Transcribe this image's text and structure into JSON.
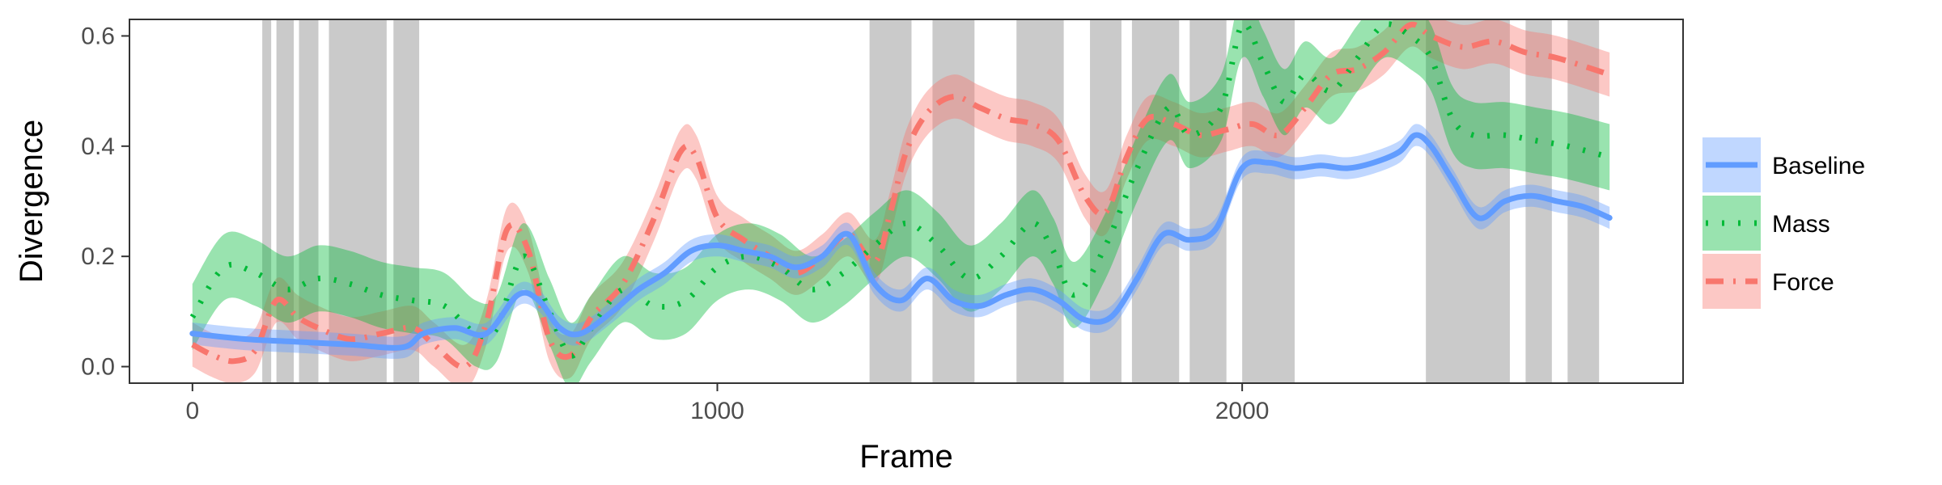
{
  "chart_data": {
    "type": "line",
    "title": "",
    "xlabel": "Frame",
    "ylabel": "Divergence",
    "xlim": [
      -120,
      2840
    ],
    "ylim": [
      -0.03,
      0.63
    ],
    "x_ticks": [
      0,
      1000,
      2000
    ],
    "y_ticks": [
      0.0,
      0.2,
      0.4,
      0.6
    ],
    "x_tick_labels": [
      "0",
      "1000",
      "2000"
    ],
    "y_tick_labels": [
      "0.0",
      "0.2",
      "0.4",
      "0.6"
    ],
    "grid": false,
    "legend_position": "right",
    "shaded_intervals": [
      [
        133,
        150
      ],
      [
        160,
        193
      ],
      [
        203,
        240
      ],
      [
        260,
        370
      ],
      [
        383,
        432
      ],
      [
        1290,
        1370
      ],
      [
        1410,
        1490
      ],
      [
        1570,
        1660
      ],
      [
        1710,
        1770
      ],
      [
        1790,
        1880
      ],
      [
        1900,
        1970
      ],
      [
        2000,
        2100
      ],
      [
        2350,
        2510
      ],
      [
        2540,
        2590
      ],
      [
        2620,
        2680
      ]
    ],
    "series": [
      {
        "name": "Baseline",
        "color": "#619CFF",
        "line_style": "solid",
        "x": [
          0,
          100,
          200,
          300,
          400,
          440,
          500,
          560,
          620,
          660,
          700,
          740,
          800,
          850,
          900,
          950,
          1000,
          1050,
          1100,
          1150,
          1200,
          1250,
          1300,
          1350,
          1400,
          1450,
          1500,
          1550,
          1600,
          1650,
          1700,
          1750,
          1800,
          1850,
          1900,
          1950,
          2000,
          2050,
          2100,
          2150,
          2200,
          2250,
          2300,
          2330,
          2360,
          2400,
          2450,
          2500,
          2550,
          2600,
          2650,
          2700
        ],
        "y": [
          0.06,
          0.05,
          0.045,
          0.04,
          0.035,
          0.06,
          0.07,
          0.06,
          0.13,
          0.12,
          0.07,
          0.06,
          0.1,
          0.14,
          0.17,
          0.21,
          0.22,
          0.21,
          0.2,
          0.18,
          0.2,
          0.24,
          0.15,
          0.12,
          0.16,
          0.12,
          0.11,
          0.13,
          0.14,
          0.12,
          0.085,
          0.09,
          0.16,
          0.24,
          0.23,
          0.25,
          0.36,
          0.37,
          0.36,
          0.365,
          0.36,
          0.37,
          0.39,
          0.42,
          0.4,
          0.34,
          0.27,
          0.3,
          0.31,
          0.3,
          0.29,
          0.27
        ],
        "ci_halfwidth": 0.02
      },
      {
        "name": "Mass",
        "color": "#00BA38",
        "line_style": "dotted",
        "x": [
          0,
          60,
          120,
          180,
          240,
          300,
          360,
          420,
          480,
          540,
          580,
          630,
          680,
          720,
          760,
          820,
          880,
          940,
          1000,
          1060,
          1120,
          1180,
          1240,
          1300,
          1360,
          1420,
          1480,
          1540,
          1600,
          1640,
          1680,
          1740,
          1800,
          1860,
          1900,
          1960,
          2000,
          2040,
          2080,
          2120,
          2170,
          2220,
          2270,
          2320,
          2360,
          2400,
          2440,
          2500,
          2560,
          2620,
          2700
        ],
        "y": [
          0.09,
          0.18,
          0.17,
          0.14,
          0.16,
          0.15,
          0.13,
          0.12,
          0.11,
          0.06,
          0.07,
          0.2,
          0.1,
          0.02,
          0.07,
          0.14,
          0.11,
          0.12,
          0.18,
          0.2,
          0.18,
          0.14,
          0.17,
          0.22,
          0.26,
          0.22,
          0.16,
          0.2,
          0.26,
          0.21,
          0.13,
          0.22,
          0.36,
          0.47,
          0.42,
          0.47,
          0.62,
          0.55,
          0.48,
          0.53,
          0.5,
          0.56,
          0.62,
          0.6,
          0.56,
          0.45,
          0.42,
          0.42,
          0.41,
          0.4,
          0.38
        ],
        "ci_halfwidth": 0.06
      },
      {
        "name": "Force",
        "color": "#F8766D",
        "line_style": "dashed-dotted",
        "x": [
          0,
          40,
          80,
          120,
          160,
          200,
          240,
          300,
          360,
          420,
          460,
          520,
          560,
          600,
          640,
          680,
          720,
          760,
          820,
          880,
          930,
          960,
          1000,
          1050,
          1100,
          1150,
          1200,
          1250,
          1300,
          1330,
          1360,
          1400,
          1450,
          1500,
          1550,
          1600,
          1650,
          1700,
          1740,
          1780,
          1820,
          1870,
          1920,
          1970,
          2020,
          2070,
          2120,
          2170,
          2220,
          2270,
          2320,
          2360,
          2420,
          2480,
          2540,
          2600,
          2700
        ],
        "y": [
          0.04,
          0.02,
          0.01,
          0.03,
          0.12,
          0.09,
          0.07,
          0.05,
          0.06,
          0.07,
          0.04,
          0.0,
          0.08,
          0.25,
          0.21,
          0.05,
          0.02,
          0.09,
          0.15,
          0.27,
          0.39,
          0.38,
          0.27,
          0.23,
          0.2,
          0.17,
          0.2,
          0.24,
          0.19,
          0.28,
          0.39,
          0.46,
          0.49,
          0.47,
          0.45,
          0.44,
          0.41,
          0.31,
          0.28,
          0.38,
          0.45,
          0.44,
          0.42,
          0.43,
          0.44,
          0.42,
          0.47,
          0.53,
          0.54,
          0.57,
          0.62,
          0.6,
          0.58,
          0.59,
          0.57,
          0.56,
          0.53
        ],
        "ci_halfwidth": 0.04
      }
    ]
  }
}
